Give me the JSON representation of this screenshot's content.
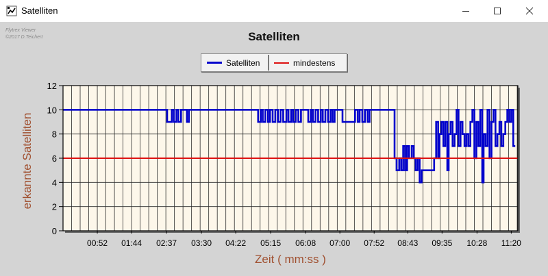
{
  "window": {
    "title": "Satelliten",
    "app_icon": "flytrex-app-icon",
    "controls": [
      "minimize-icon",
      "maximize-icon",
      "close-icon"
    ]
  },
  "watermark": {
    "line1": "Flytrex Viewer",
    "line2": "©2017 D.Teichert"
  },
  "colors": {
    "series_satelliten": "#0000cc",
    "series_mindestens": "#dd1111",
    "plot_background": "#fdf7ea",
    "axis_label": "#a05030"
  },
  "chart_data": {
    "type": "line",
    "title": "Satelliten",
    "xlabel": "Zeit ( mm:ss )",
    "ylabel": "erkannte Satelliten",
    "ylim": [
      0,
      12
    ],
    "yticks": [
      0,
      2,
      4,
      6,
      8,
      10,
      12
    ],
    "xlim_seconds": [
      0,
      690
    ],
    "xtick_labels": [
      "00:52",
      "01:44",
      "02:37",
      "03:30",
      "04:22",
      "05:15",
      "06:08",
      "07:00",
      "07:52",
      "08:43",
      "09:35",
      "10:28",
      "11:20"
    ],
    "xtick_seconds": [
      52,
      104,
      157,
      210,
      262,
      315,
      368,
      420,
      472,
      523,
      575,
      628,
      680
    ],
    "grid": true,
    "legend_position": "top-center",
    "series": [
      {
        "name": "Satelliten",
        "color": "#0000cc",
        "points": [
          [
            0,
            10
          ],
          [
            158,
            10
          ],
          [
            158,
            9
          ],
          [
            165,
            9
          ],
          [
            165,
            10
          ],
          [
            168,
            10
          ],
          [
            168,
            9
          ],
          [
            172,
            9
          ],
          [
            172,
            10
          ],
          [
            175,
            10
          ],
          [
            175,
            9
          ],
          [
            179,
            9
          ],
          [
            179,
            10
          ],
          [
            188,
            10
          ],
          [
            188,
            9
          ],
          [
            191,
            9
          ],
          [
            191,
            10
          ],
          [
            296,
            10
          ],
          [
            296,
            9
          ],
          [
            300,
            9
          ],
          [
            300,
            10
          ],
          [
            303,
            10
          ],
          [
            303,
            9
          ],
          [
            307,
            9
          ],
          [
            307,
            10
          ],
          [
            311,
            10
          ],
          [
            311,
            9
          ],
          [
            314,
            9
          ],
          [
            314,
            10
          ],
          [
            318,
            10
          ],
          [
            318,
            9
          ],
          [
            322,
            9
          ],
          [
            322,
            10
          ],
          [
            326,
            10
          ],
          [
            326,
            9
          ],
          [
            330,
            9
          ],
          [
            330,
            10
          ],
          [
            334,
            10
          ],
          [
            334,
            9
          ],
          [
            339,
            9
          ],
          [
            339,
            10
          ],
          [
            342,
            10
          ],
          [
            342,
            9
          ],
          [
            346,
            9
          ],
          [
            346,
            10
          ],
          [
            349,
            10
          ],
          [
            349,
            9
          ],
          [
            353,
            9
          ],
          [
            353,
            10
          ],
          [
            357,
            10
          ],
          [
            357,
            9
          ],
          [
            361,
            9
          ],
          [
            361,
            10
          ],
          [
            372,
            10
          ],
          [
            372,
            9
          ],
          [
            376,
            9
          ],
          [
            376,
            10
          ],
          [
            379,
            10
          ],
          [
            379,
            9
          ],
          [
            383,
            9
          ],
          [
            383,
            10
          ],
          [
            387,
            10
          ],
          [
            387,
            9
          ],
          [
            391,
            9
          ],
          [
            391,
            10
          ],
          [
            394,
            10
          ],
          [
            394,
            9
          ],
          [
            398,
            9
          ],
          [
            398,
            10
          ],
          [
            402,
            10
          ],
          [
            402,
            9
          ],
          [
            406,
            9
          ],
          [
            406,
            10
          ],
          [
            409,
            10
          ],
          [
            409,
            9
          ],
          [
            412,
            9
          ],
          [
            412,
            10
          ],
          [
            424,
            10
          ],
          [
            424,
            9
          ],
          [
            443,
            9
          ],
          [
            443,
            10
          ],
          [
            447,
            10
          ],
          [
            447,
            9
          ],
          [
            450,
            9
          ],
          [
            450,
            10
          ],
          [
            454,
            10
          ],
          [
            454,
            9
          ],
          [
            458,
            9
          ],
          [
            458,
            10
          ],
          [
            462,
            10
          ],
          [
            462,
            9
          ],
          [
            465,
            9
          ],
          [
            465,
            10
          ],
          [
            503,
            10
          ],
          [
            503,
            6
          ],
          [
            506,
            6
          ],
          [
            506,
            5
          ],
          [
            510,
            5
          ],
          [
            510,
            6
          ],
          [
            513,
            6
          ],
          [
            513,
            5
          ],
          [
            516,
            5
          ],
          [
            516,
            7
          ],
          [
            519,
            7
          ],
          [
            519,
            5
          ],
          [
            522,
            5
          ],
          [
            522,
            7
          ],
          [
            525,
            7
          ],
          [
            525,
            6
          ],
          [
            529,
            6
          ],
          [
            529,
            7
          ],
          [
            532,
            7
          ],
          [
            532,
            6
          ],
          [
            535,
            6
          ],
          [
            535,
            5
          ],
          [
            538,
            5
          ],
          [
            538,
            6
          ],
          [
            541,
            6
          ],
          [
            541,
            4
          ],
          [
            544,
            4
          ],
          [
            544,
            5
          ],
          [
            563,
            5
          ],
          [
            563,
            6
          ],
          [
            566,
            6
          ],
          [
            566,
            9
          ],
          [
            569,
            9
          ],
          [
            569,
            6
          ],
          [
            571,
            6
          ],
          [
            571,
            8
          ],
          [
            574,
            8
          ],
          [
            574,
            9
          ],
          [
            577,
            9
          ],
          [
            577,
            7
          ],
          [
            580,
            7
          ],
          [
            580,
            9
          ],
          [
            583,
            9
          ],
          [
            583,
            5
          ],
          [
            585,
            5
          ],
          [
            585,
            8
          ],
          [
            588,
            8
          ],
          [
            588,
            9
          ],
          [
            591,
            9
          ],
          [
            591,
            7
          ],
          [
            594,
            7
          ],
          [
            594,
            8
          ],
          [
            597,
            8
          ],
          [
            597,
            10
          ],
          [
            600,
            10
          ],
          [
            600,
            7
          ],
          [
            603,
            7
          ],
          [
            603,
            9
          ],
          [
            606,
            9
          ],
          [
            606,
            8
          ],
          [
            609,
            8
          ],
          [
            609,
            7
          ],
          [
            612,
            7
          ],
          [
            612,
            8
          ],
          [
            615,
            8
          ],
          [
            615,
            7
          ],
          [
            618,
            7
          ],
          [
            618,
            9
          ],
          [
            621,
            9
          ],
          [
            621,
            10
          ],
          [
            624,
            10
          ],
          [
            624,
            6
          ],
          [
            627,
            6
          ],
          [
            627,
            9
          ],
          [
            630,
            9
          ],
          [
            630,
            7
          ],
          [
            633,
            7
          ],
          [
            633,
            10
          ],
          [
            636,
            10
          ],
          [
            636,
            4
          ],
          [
            638,
            4
          ],
          [
            638,
            8
          ],
          [
            641,
            8
          ],
          [
            641,
            7
          ],
          [
            644,
            7
          ],
          [
            644,
            10
          ],
          [
            647,
            10
          ],
          [
            647,
            6
          ],
          [
            650,
            6
          ],
          [
            650,
            9
          ],
          [
            653,
            9
          ],
          [
            653,
            10
          ],
          [
            656,
            10
          ],
          [
            656,
            7
          ],
          [
            659,
            7
          ],
          [
            659,
            8
          ],
          [
            662,
            8
          ],
          [
            662,
            9
          ],
          [
            665,
            9
          ],
          [
            665,
            7
          ],
          [
            668,
            7
          ],
          [
            668,
            8
          ],
          [
            671,
            8
          ],
          [
            671,
            9
          ],
          [
            674,
            9
          ],
          [
            674,
            10
          ],
          [
            677,
            10
          ],
          [
            677,
            9
          ],
          [
            680,
            9
          ],
          [
            680,
            10
          ],
          [
            683,
            10
          ],
          [
            683,
            7
          ],
          [
            686,
            7
          ]
        ]
      },
      {
        "name": "mindestens",
        "color": "#dd1111",
        "points": [
          [
            0,
            6
          ],
          [
            690,
            6
          ]
        ]
      }
    ]
  }
}
